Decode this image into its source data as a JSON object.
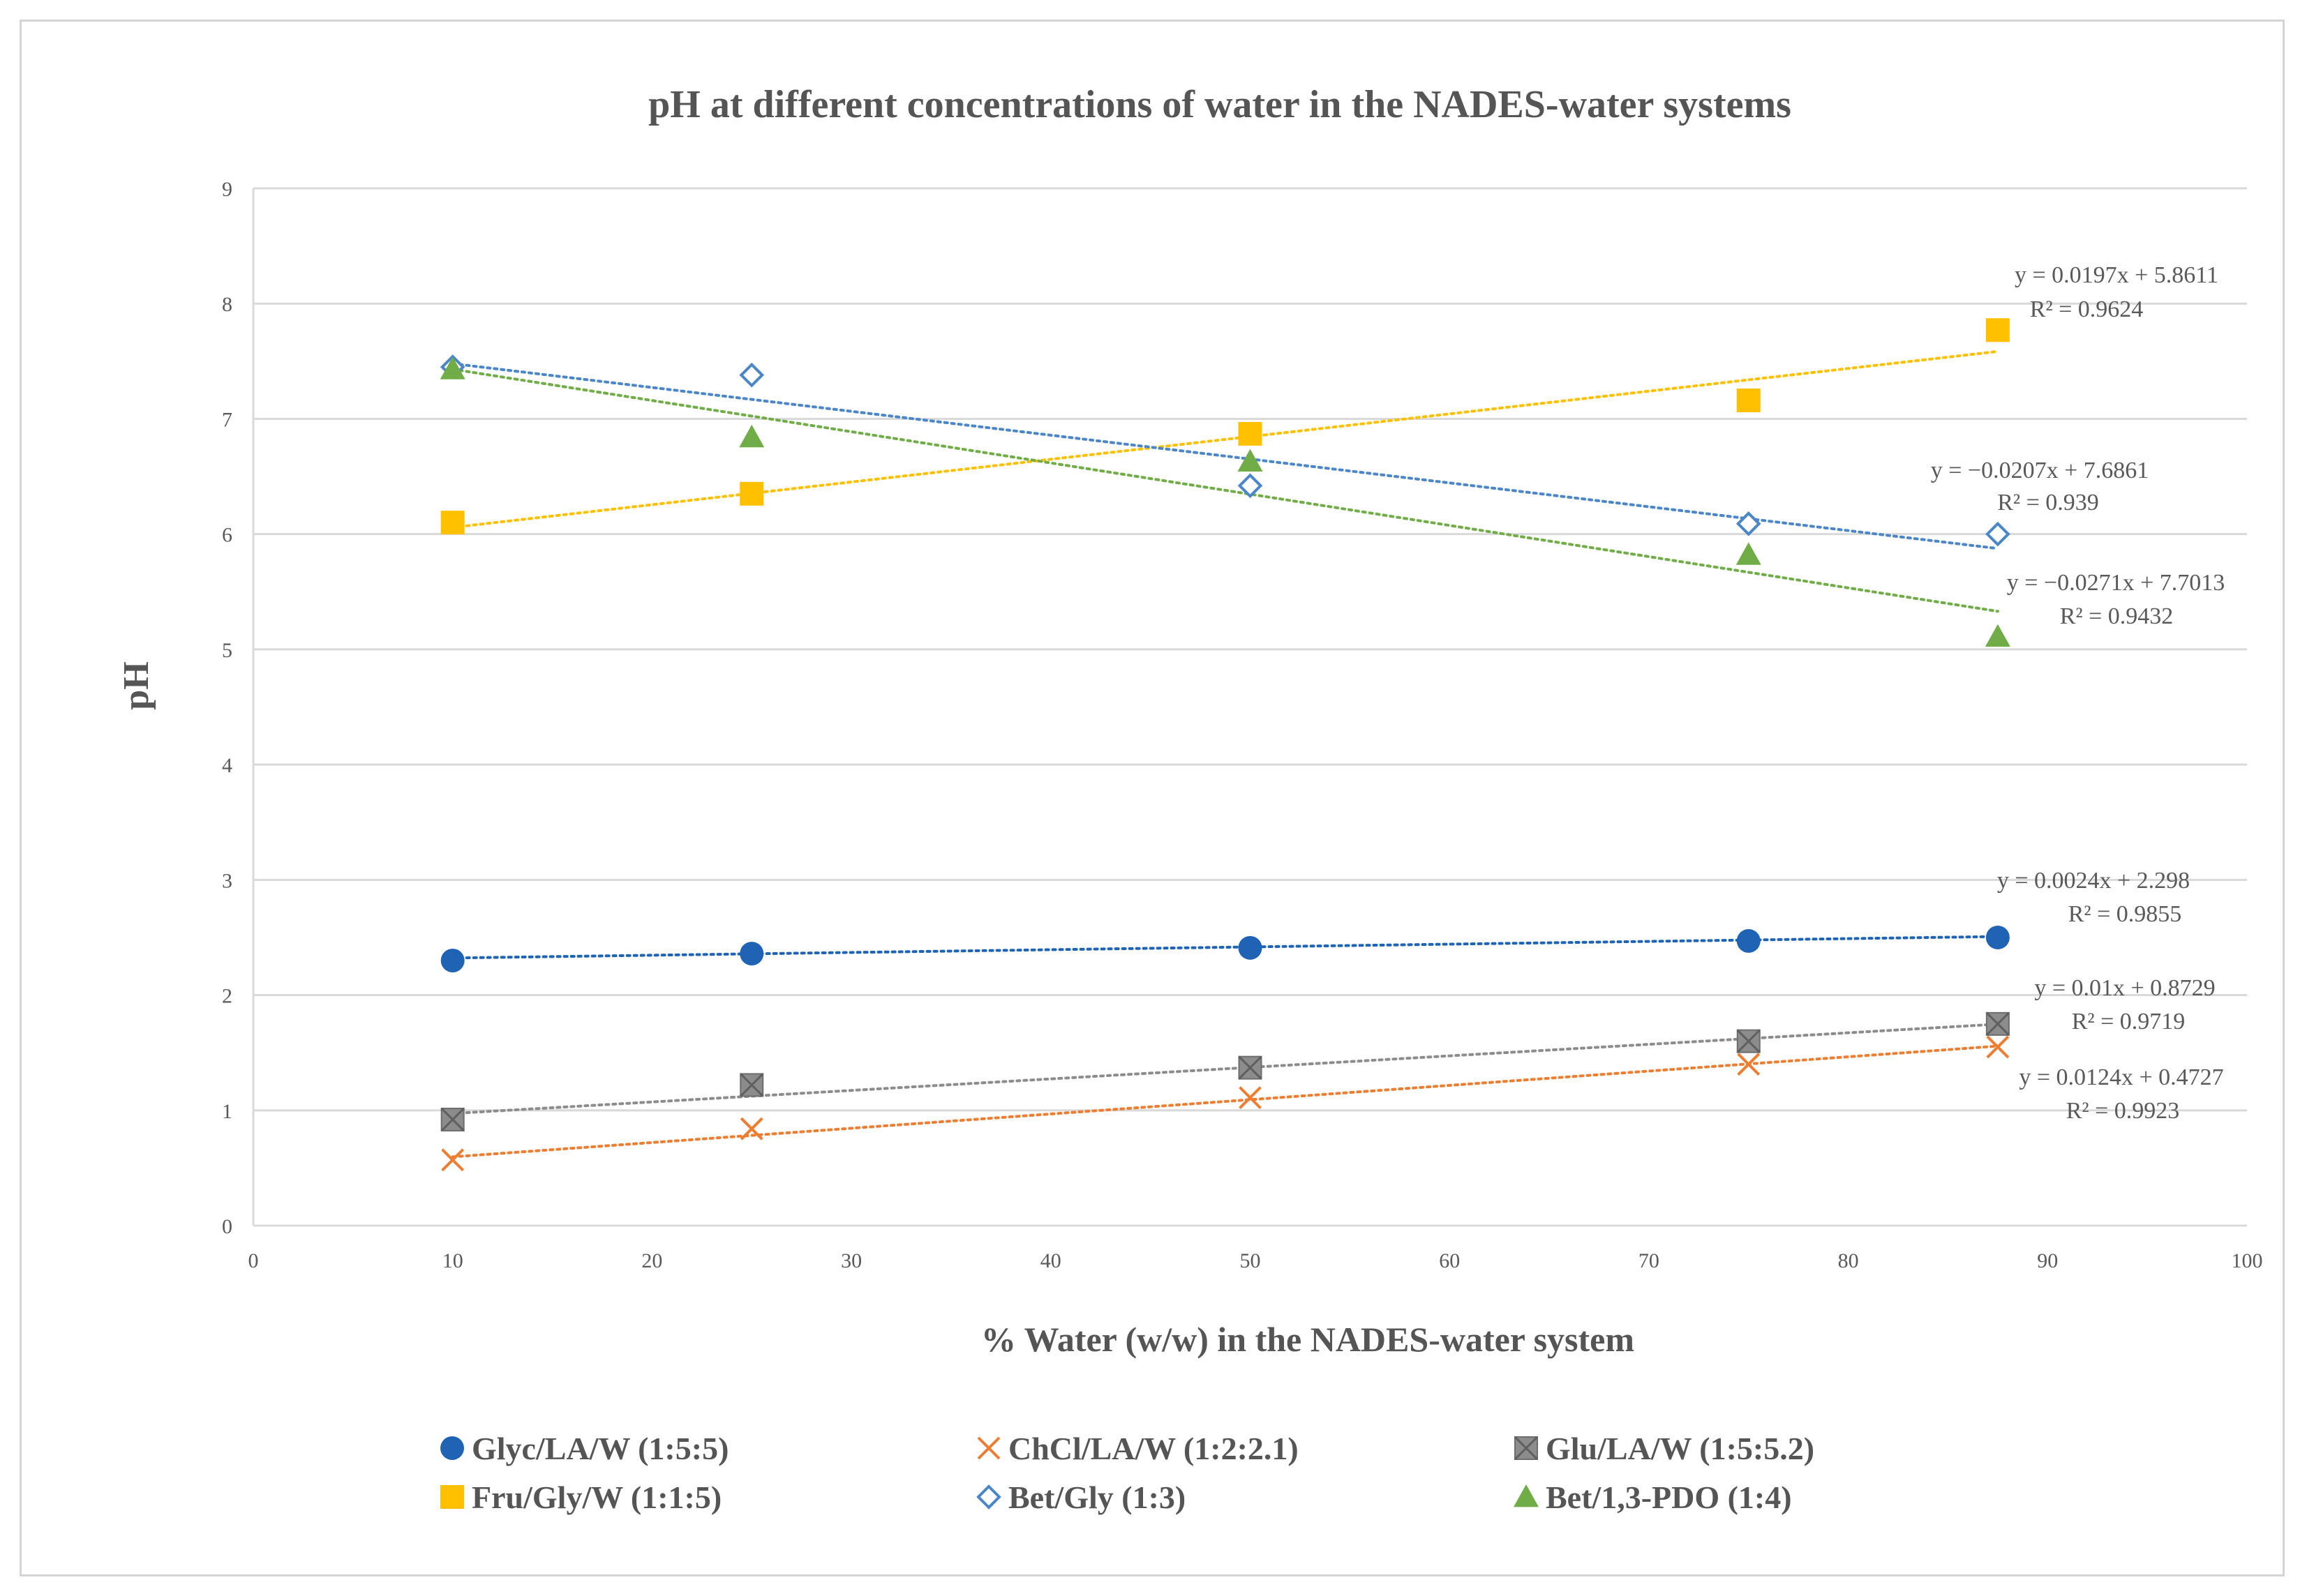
{
  "chart_data": {
    "type": "scatter",
    "title": "pH at different concentrations of water in the NADES-water systems",
    "xlabel": "% Water (w/w) in the NADES-water system",
    "ylabel": "pH",
    "xlim": [
      0,
      100
    ],
    "ylim": [
      0,
      9
    ],
    "x_ticks": [
      0,
      10,
      20,
      30,
      40,
      50,
      60,
      70,
      80,
      90,
      100
    ],
    "y_ticks": [
      0,
      1,
      2,
      3,
      4,
      5,
      6,
      7,
      8,
      9
    ],
    "grid": "horizontal",
    "legend_position": "bottom",
    "series": [
      {
        "name": "Glyc/LA/W (1:5:5)",
        "marker": "circle",
        "color": "#1f63b5",
        "x": [
          10,
          25,
          50,
          75,
          87.5
        ],
        "y": [
          2.3,
          2.36,
          2.41,
          2.47,
          2.5
        ],
        "trendline": {
          "slope": 0.0024,
          "intercept": 2.298,
          "equation": "y = 0.0024x + 2.298",
          "r2": "R² = 0.9855"
        }
      },
      {
        "name": "ChCl/LA/W (1:2:2.1)",
        "marker": "x",
        "color": "#ed7d31",
        "x": [
          10,
          25,
          50,
          75,
          87.5
        ],
        "y": [
          0.57,
          0.84,
          1.11,
          1.4,
          1.55
        ],
        "trendline": {
          "slope": 0.0124,
          "intercept": 0.4727,
          "equation": "y = 0.0124x + 0.4727",
          "r2": "R² = 0.9923"
        }
      },
      {
        "name": "Glu/LA/W (1:5:5.2)",
        "marker": "square-x",
        "color": "#8c8c8c",
        "x": [
          10,
          25,
          50,
          75,
          87.5
        ],
        "y": [
          0.92,
          1.22,
          1.37,
          1.6,
          1.75
        ],
        "trendline": {
          "slope": 0.01,
          "intercept": 0.8729,
          "equation": "y = 0.01x + 0.8729",
          "r2": "R² = 0.9719"
        }
      },
      {
        "name": "Fru/Gly/W (1:1:5)",
        "marker": "square",
        "color": "#ffc000",
        "x": [
          10,
          25,
          50,
          75,
          87.5
        ],
        "y": [
          6.1,
          6.35,
          6.87,
          7.16,
          7.77
        ],
        "trendline": {
          "slope": 0.0197,
          "intercept": 5.8611,
          "equation": "y = 0.0197x + 5.8611",
          "r2": "R² = 0.9624"
        }
      },
      {
        "name": "Bet/Gly (1:3)",
        "marker": "diamond-open",
        "color": "#4a86c8",
        "x": [
          10,
          25,
          50,
          75,
          87.5
        ],
        "y": [
          7.45,
          7.38,
          6.42,
          6.09,
          6.0
        ],
        "trendline": {
          "slope": -0.0207,
          "intercept": 7.6861,
          "equation": "y = −0.0207x + 7.6861",
          "r2": "R² = 0.939"
        }
      },
      {
        "name": "Bet/1,3-PDO (1:4)",
        "marker": "triangle",
        "color": "#70ad47",
        "x": [
          10,
          25,
          50,
          75,
          87.5
        ],
        "y": [
          7.43,
          6.84,
          6.63,
          5.82,
          5.11
        ],
        "trendline": {
          "slope": -0.0271,
          "intercept": 7.7013,
          "equation": "y =  −0.0271x + 7.7013",
          "r2": "R² = 0.9432"
        }
      }
    ]
  }
}
